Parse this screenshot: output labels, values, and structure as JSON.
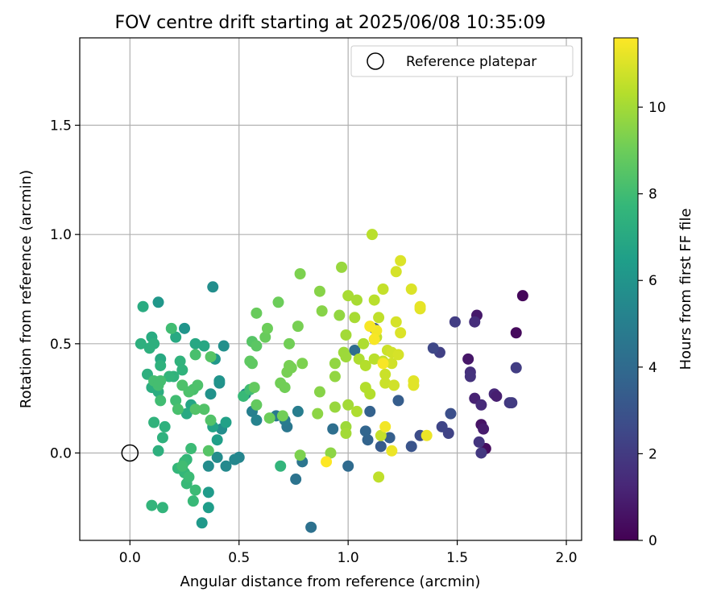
{
  "chart_data": {
    "type": "scatter",
    "title": "FOV centre drift starting at 2025/06/08 10:35:09",
    "xlabel": "Angular distance from reference (arcmin)",
    "ylabel": "Rotation from reference (arcmin)",
    "xlim": [
      -0.23,
      2.07
    ],
    "ylim": [
      -0.4,
      1.9
    ],
    "xticks": [
      0.0,
      0.5,
      1.0,
      1.5,
      2.0
    ],
    "xtick_labels": [
      "0.0",
      "0.5",
      "1.0",
      "1.5",
      "2.0"
    ],
    "yticks": [
      0.0,
      0.5,
      1.0,
      1.5
    ],
    "ytick_labels": [
      "0.0",
      "0.5",
      "1.0",
      "1.5"
    ],
    "grid": true,
    "legend": {
      "placement": "top-right",
      "entries": [
        "Reference platepar"
      ]
    },
    "reference_point": {
      "x": 0.0,
      "y": 0.0,
      "marker": "open-circle"
    },
    "colorbar": {
      "label": "Hours from first FF file",
      "colormap": "viridis",
      "range": [
        0,
        11.6
      ],
      "ticks": [
        0,
        2,
        4,
        6,
        8,
        10
      ],
      "tick_labels": [
        "0",
        "2",
        "4",
        "6",
        "8",
        "10"
      ]
    },
    "points": [
      {
        "x": 1.8,
        "y": 0.72,
        "h": 0.2
      },
      {
        "x": 1.77,
        "y": 0.55,
        "h": 0.3
      },
      {
        "x": 1.63,
        "y": 0.02,
        "h": 0.4
      },
      {
        "x": 1.59,
        "y": 0.63,
        "h": 0.8
      },
      {
        "x": 1.61,
        "y": 0.13,
        "h": 0.6
      },
      {
        "x": 1.62,
        "y": 0.11,
        "h": 0.9
      },
      {
        "x": 1.55,
        "y": 0.43,
        "h": 0.7
      },
      {
        "x": 1.58,
        "y": 0.25,
        "h": 1.1
      },
      {
        "x": 1.67,
        "y": 0.27,
        "h": 1.3
      },
      {
        "x": 1.68,
        "y": 0.26,
        "h": 1.0
      },
      {
        "x": 1.61,
        "y": 0.22,
        "h": 1.4
      },
      {
        "x": 1.58,
        "y": 0.6,
        "h": 1.5
      },
      {
        "x": 1.56,
        "y": 0.37,
        "h": 1.6
      },
      {
        "x": 1.56,
        "y": 0.35,
        "h": 1.7
      },
      {
        "x": 1.6,
        "y": 0.05,
        "h": 1.8
      },
      {
        "x": 1.61,
        "y": 0.0,
        "h": 1.9
      },
      {
        "x": 1.74,
        "y": 0.23,
        "h": 1.9
      },
      {
        "x": 1.75,
        "y": 0.23,
        "h": 2.0
      },
      {
        "x": 1.77,
        "y": 0.39,
        "h": 2.1
      },
      {
        "x": 1.49,
        "y": 0.6,
        "h": 2.1
      },
      {
        "x": 1.42,
        "y": 0.46,
        "h": 2.2
      },
      {
        "x": 1.46,
        "y": 0.09,
        "h": 2.3
      },
      {
        "x": 1.43,
        "y": 0.12,
        "h": 2.4
      },
      {
        "x": 1.39,
        "y": 0.48,
        "h": 2.5
      },
      {
        "x": 1.33,
        "y": 0.08,
        "h": 2.7
      },
      {
        "x": 1.47,
        "y": 0.18,
        "h": 2.8
      },
      {
        "x": 1.29,
        "y": 0.03,
        "h": 3.0
      },
      {
        "x": 1.12,
        "y": 0.57,
        "h": 3.1
      },
      {
        "x": 1.15,
        "y": 0.03,
        "h": 3.3
      },
      {
        "x": 1.23,
        "y": 0.24,
        "h": 3.4
      },
      {
        "x": 1.19,
        "y": 0.07,
        "h": 3.5
      },
      {
        "x": 1.1,
        "y": 0.19,
        "h": 3.6
      },
      {
        "x": 1.09,
        "y": 0.06,
        "h": 3.7
      },
      {
        "x": 1.08,
        "y": 0.1,
        "h": 3.8
      },
      {
        "x": 1.0,
        "y": -0.06,
        "h": 4.0
      },
      {
        "x": 1.03,
        "y": 0.47,
        "h": 4.1
      },
      {
        "x": 0.93,
        "y": 0.11,
        "h": 4.2
      },
      {
        "x": 0.83,
        "y": -0.34,
        "h": 4.3
      },
      {
        "x": 0.76,
        "y": -0.12,
        "h": 4.4
      },
      {
        "x": 0.79,
        "y": -0.04,
        "h": 4.5
      },
      {
        "x": 0.72,
        "y": 0.12,
        "h": 4.6
      },
      {
        "x": 0.67,
        "y": 0.17,
        "h": 4.7
      },
      {
        "x": 0.71,
        "y": 0.15,
        "h": 4.8
      },
      {
        "x": 0.77,
        "y": 0.19,
        "h": 4.9
      },
      {
        "x": 0.56,
        "y": 0.19,
        "h": 5.0
      },
      {
        "x": 0.53,
        "y": 0.27,
        "h": 5.1
      },
      {
        "x": 0.58,
        "y": 0.15,
        "h": 5.2
      },
      {
        "x": 0.5,
        "y": -0.02,
        "h": 5.3
      },
      {
        "x": 0.48,
        "y": -0.03,
        "h": 5.4
      },
      {
        "x": 0.44,
        "y": -0.06,
        "h": 5.5
      },
      {
        "x": 0.36,
        "y": -0.06,
        "h": 5.6
      },
      {
        "x": 0.4,
        "y": -0.02,
        "h": 5.6
      },
      {
        "x": 0.42,
        "y": 0.11,
        "h": 5.7
      },
      {
        "x": 0.38,
        "y": 0.76,
        "h": 5.7
      },
      {
        "x": 0.43,
        "y": 0.49,
        "h": 5.8
      },
      {
        "x": 0.41,
        "y": 0.32,
        "h": 5.8
      },
      {
        "x": 0.37,
        "y": 0.27,
        "h": 5.9
      },
      {
        "x": 0.41,
        "y": 0.33,
        "h": 6.0
      },
      {
        "x": 0.25,
        "y": 0.57,
        "h": 6.0
      },
      {
        "x": 0.13,
        "y": 0.69,
        "h": 6.1
      },
      {
        "x": 0.39,
        "y": 0.43,
        "h": 6.1
      },
      {
        "x": 0.33,
        "y": -0.32,
        "h": 6.2
      },
      {
        "x": 0.36,
        "y": -0.18,
        "h": 6.3
      },
      {
        "x": 0.36,
        "y": -0.25,
        "h": 6.4
      },
      {
        "x": 0.4,
        "y": 0.06,
        "h": 6.5
      },
      {
        "x": 0.44,
        "y": 0.14,
        "h": 6.6
      },
      {
        "x": 0.38,
        "y": 0.12,
        "h": 6.7
      },
      {
        "x": 0.28,
        "y": 0.22,
        "h": 6.8
      },
      {
        "x": 0.34,
        "y": 0.49,
        "h": 6.9
      },
      {
        "x": 0.3,
        "y": 0.5,
        "h": 6.9
      },
      {
        "x": 0.26,
        "y": 0.18,
        "h": 7.0
      },
      {
        "x": 0.21,
        "y": 0.53,
        "h": 7.0
      },
      {
        "x": 0.14,
        "y": 0.43,
        "h": 7.0
      },
      {
        "x": 0.06,
        "y": 0.67,
        "h": 7.1
      },
      {
        "x": 0.1,
        "y": 0.53,
        "h": 7.1
      },
      {
        "x": 0.13,
        "y": 0.28,
        "h": 7.2
      },
      {
        "x": 0.1,
        "y": 0.3,
        "h": 7.2
      },
      {
        "x": 0.08,
        "y": 0.36,
        "h": 7.3
      },
      {
        "x": 0.13,
        "y": 0.01,
        "h": 7.3
      },
      {
        "x": 0.05,
        "y": 0.5,
        "h": 7.3
      },
      {
        "x": 0.11,
        "y": 0.5,
        "h": 7.3
      },
      {
        "x": 0.09,
        "y": 0.48,
        "h": 7.3
      },
      {
        "x": 0.14,
        "y": 0.4,
        "h": 7.4
      },
      {
        "x": 0.16,
        "y": 0.12,
        "h": 7.4
      },
      {
        "x": 0.15,
        "y": 0.07,
        "h": 7.4
      },
      {
        "x": 0.11,
        "y": 0.14,
        "h": 7.5
      },
      {
        "x": 0.2,
        "y": 0.35,
        "h": 7.5
      },
      {
        "x": 0.23,
        "y": 0.42,
        "h": 7.5
      },
      {
        "x": 0.24,
        "y": 0.38,
        "h": 7.5
      },
      {
        "x": 0.18,
        "y": 0.35,
        "h": 7.6
      },
      {
        "x": 0.15,
        "y": -0.25,
        "h": 7.6
      },
      {
        "x": 0.1,
        "y": -0.24,
        "h": 7.6
      },
      {
        "x": 0.22,
        "y": -0.07,
        "h": 7.7
      },
      {
        "x": 0.25,
        "y": -0.09,
        "h": 7.7
      },
      {
        "x": 0.26,
        "y": -0.03,
        "h": 7.7
      },
      {
        "x": 0.29,
        "y": -0.22,
        "h": 7.8
      },
      {
        "x": 0.26,
        "y": -0.14,
        "h": 7.8
      },
      {
        "x": 0.25,
        "y": -0.04,
        "h": 7.8
      },
      {
        "x": 0.28,
        "y": 0.02,
        "h": 7.9
      },
      {
        "x": 0.3,
        "y": -0.17,
        "h": 7.9
      },
      {
        "x": 0.27,
        "y": -0.11,
        "h": 7.9
      },
      {
        "x": 0.24,
        "y": -0.06,
        "h": 8.0
      },
      {
        "x": 0.21,
        "y": 0.24,
        "h": 8.0
      },
      {
        "x": 0.19,
        "y": 0.57,
        "h": 8.0
      },
      {
        "x": 0.14,
        "y": 0.24,
        "h": 8.0
      },
      {
        "x": 0.11,
        "y": 0.33,
        "h": 8.1
      },
      {
        "x": 0.14,
        "y": 0.33,
        "h": 8.1
      },
      {
        "x": 0.13,
        "y": 0.31,
        "h": 8.1
      },
      {
        "x": 0.22,
        "y": 0.2,
        "h": 8.2
      },
      {
        "x": 0.29,
        "y": 0.29,
        "h": 8.2
      },
      {
        "x": 0.3,
        "y": 0.45,
        "h": 8.2
      },
      {
        "x": 0.24,
        "y": 0.31,
        "h": 8.3
      },
      {
        "x": 0.31,
        "y": 0.31,
        "h": 8.3
      },
      {
        "x": 0.27,
        "y": 0.28,
        "h": 8.3
      },
      {
        "x": 0.3,
        "y": 0.2,
        "h": 8.4
      },
      {
        "x": 0.34,
        "y": 0.2,
        "h": 8.4
      },
      {
        "x": 0.37,
        "y": 0.15,
        "h": 8.4
      },
      {
        "x": 0.37,
        "y": 0.44,
        "h": 8.5
      },
      {
        "x": 0.36,
        "y": 0.01,
        "h": 8.5
      },
      {
        "x": 0.69,
        "y": -0.06,
        "h": 7.6
      },
      {
        "x": 0.52,
        "y": 0.26,
        "h": 7.8
      },
      {
        "x": 0.55,
        "y": 0.29,
        "h": 8.0
      },
      {
        "x": 0.56,
        "y": 0.51,
        "h": 8.5
      },
      {
        "x": 0.58,
        "y": 0.49,
        "h": 8.6
      },
      {
        "x": 0.56,
        "y": 0.41,
        "h": 8.7
      },
      {
        "x": 0.55,
        "y": 0.42,
        "h": 8.7
      },
      {
        "x": 0.57,
        "y": 0.3,
        "h": 8.8
      },
      {
        "x": 0.58,
        "y": 0.22,
        "h": 8.8
      },
      {
        "x": 0.58,
        "y": 0.64,
        "h": 8.9
      },
      {
        "x": 0.62,
        "y": 0.53,
        "h": 8.9
      },
      {
        "x": 0.63,
        "y": 0.57,
        "h": 9.0
      },
      {
        "x": 0.64,
        "y": 0.16,
        "h": 9.0
      },
      {
        "x": 0.68,
        "y": 0.69,
        "h": 9.0
      },
      {
        "x": 0.69,
        "y": 0.32,
        "h": 9.1
      },
      {
        "x": 0.7,
        "y": 0.17,
        "h": 9.1
      },
      {
        "x": 0.71,
        "y": 0.3,
        "h": 9.1
      },
      {
        "x": 0.73,
        "y": 0.5,
        "h": 9.1
      },
      {
        "x": 0.73,
        "y": 0.4,
        "h": 9.2
      },
      {
        "x": 0.72,
        "y": 0.37,
        "h": 9.2
      },
      {
        "x": 0.74,
        "y": 0.39,
        "h": 9.2
      },
      {
        "x": 0.77,
        "y": 0.58,
        "h": 9.2
      },
      {
        "x": 0.78,
        "y": 0.82,
        "h": 9.3
      },
      {
        "x": 0.78,
        "y": -0.01,
        "h": 9.3
      },
      {
        "x": 0.79,
        "y": 0.41,
        "h": 9.3
      },
      {
        "x": 0.87,
        "y": 0.74,
        "h": 9.5
      },
      {
        "x": 0.88,
        "y": 0.65,
        "h": 9.5
      },
      {
        "x": 0.87,
        "y": 0.28,
        "h": 9.5
      },
      {
        "x": 0.86,
        "y": 0.18,
        "h": 9.6
      },
      {
        "x": 0.92,
        "y": 0.0,
        "h": 9.6
      },
      {
        "x": 0.96,
        "y": 0.63,
        "h": 9.7
      },
      {
        "x": 0.94,
        "y": 0.35,
        "h": 9.7
      },
      {
        "x": 0.94,
        "y": 0.41,
        "h": 9.7
      },
      {
        "x": 0.94,
        "y": 0.21,
        "h": 9.8
      },
      {
        "x": 0.97,
        "y": 0.85,
        "h": 9.8
      },
      {
        "x": 0.98,
        "y": 0.46,
        "h": 9.9
      },
      {
        "x": 0.99,
        "y": 0.44,
        "h": 9.9
      },
      {
        "x": 0.99,
        "y": 0.12,
        "h": 9.9
      },
      {
        "x": 0.99,
        "y": 0.09,
        "h": 10.0
      },
      {
        "x": 1.0,
        "y": 0.22,
        "h": 10.0
      },
      {
        "x": 0.99,
        "y": 0.54,
        "h": 10.0
      },
      {
        "x": 1.0,
        "y": 0.72,
        "h": 10.1
      },
      {
        "x": 1.03,
        "y": 0.62,
        "h": 10.1
      },
      {
        "x": 1.04,
        "y": 0.7,
        "h": 10.1
      },
      {
        "x": 1.04,
        "y": 0.19,
        "h": 10.2
      },
      {
        "x": 1.05,
        "y": 0.43,
        "h": 10.2
      },
      {
        "x": 1.07,
        "y": 0.5,
        "h": 10.2
      },
      {
        "x": 1.08,
        "y": 0.4,
        "h": 10.3
      },
      {
        "x": 1.08,
        "y": 0.3,
        "h": 10.3
      },
      {
        "x": 1.1,
        "y": 0.27,
        "h": 10.3
      },
      {
        "x": 1.11,
        "y": 1.0,
        "h": 10.4
      },
      {
        "x": 1.12,
        "y": 0.7,
        "h": 10.4
      },
      {
        "x": 1.12,
        "y": 0.43,
        "h": 10.4
      },
      {
        "x": 1.13,
        "y": 0.53,
        "h": 10.5
      },
      {
        "x": 1.14,
        "y": 0.62,
        "h": 10.5
      },
      {
        "x": 1.14,
        "y": -0.11,
        "h": 10.5
      },
      {
        "x": 1.15,
        "y": 0.08,
        "h": 10.6
      },
      {
        "x": 1.16,
        "y": 0.42,
        "h": 10.6
      },
      {
        "x": 1.16,
        "y": 0.75,
        "h": 10.6
      },
      {
        "x": 1.17,
        "y": 0.36,
        "h": 10.7
      },
      {
        "x": 1.17,
        "y": 0.32,
        "h": 10.7
      },
      {
        "x": 1.18,
        "y": 0.47,
        "h": 10.7
      },
      {
        "x": 1.2,
        "y": 0.46,
        "h": 10.8
      },
      {
        "x": 1.2,
        "y": 0.41,
        "h": 10.8
      },
      {
        "x": 1.21,
        "y": 0.31,
        "h": 10.8
      },
      {
        "x": 1.22,
        "y": 0.6,
        "h": 10.9
      },
      {
        "x": 1.22,
        "y": 0.83,
        "h": 10.9
      },
      {
        "x": 1.23,
        "y": 0.45,
        "h": 10.9
      },
      {
        "x": 1.24,
        "y": 0.88,
        "h": 11.0
      },
      {
        "x": 1.24,
        "y": 0.55,
        "h": 11.0
      },
      {
        "x": 1.29,
        "y": 0.75,
        "h": 11.0
      },
      {
        "x": 1.3,
        "y": 0.33,
        "h": 11.1
      },
      {
        "x": 1.3,
        "y": 0.31,
        "h": 11.1
      },
      {
        "x": 1.33,
        "y": 0.66,
        "h": 11.1
      },
      {
        "x": 1.33,
        "y": 0.67,
        "h": 11.2
      },
      {
        "x": 1.36,
        "y": 0.08,
        "h": 11.3
      },
      {
        "x": 1.2,
        "y": 0.01,
        "h": 11.3
      },
      {
        "x": 1.17,
        "y": 0.12,
        "h": 11.4
      },
      {
        "x": 1.13,
        "y": 0.56,
        "h": 11.4
      },
      {
        "x": 1.1,
        "y": 0.58,
        "h": 11.5
      },
      {
        "x": 1.12,
        "y": 0.52,
        "h": 11.5
      },
      {
        "x": 1.16,
        "y": 0.41,
        "h": 11.5
      },
      {
        "x": 0.9,
        "y": -0.04,
        "h": 11.6
      }
    ]
  }
}
